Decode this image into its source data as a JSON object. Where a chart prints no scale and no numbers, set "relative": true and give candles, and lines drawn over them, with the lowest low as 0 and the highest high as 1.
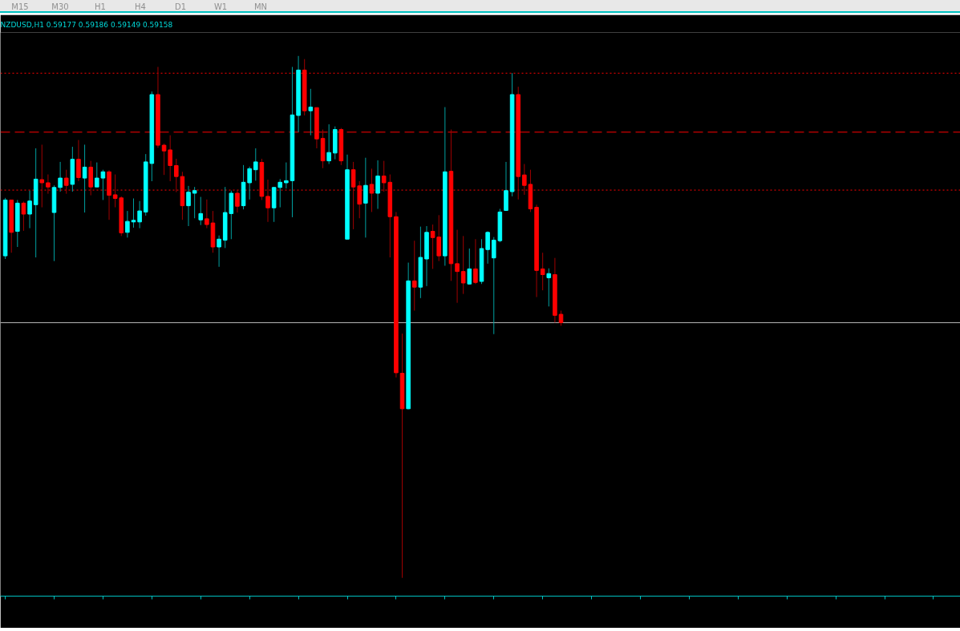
{
  "chart_data": {
    "type": "candlestick",
    "title": "NZDUSD,H1  0.59177 0.59186 0.59149 0.59158",
    "relative": true,
    "annotations": [
      "M15",
      "M30",
      "H1",
      "H4",
      "D1",
      "W1",
      "MN"
    ],
    "categories": [
      null,
      null,
      null,
      null,
      null,
      null,
      null,
      null,
      null,
      null,
      null,
      null,
      null,
      null,
      null,
      null,
      null,
      null,
      null,
      null,
      null,
      null,
      null,
      null,
      null,
      null,
      null,
      null,
      null,
      null,
      null,
      null,
      null,
      null,
      null,
      null,
      null,
      null,
      null,
      null,
      null,
      null,
      null,
      null,
      null,
      null,
      null,
      null,
      null,
      null,
      null,
      null,
      null,
      null,
      null,
      null,
      null,
      null,
      null,
      null,
      null,
      null,
      null,
      null,
      null,
      null,
      null,
      null,
      null,
      null,
      null,
      null,
      null,
      null,
      null,
      null,
      null,
      null,
      null,
      null,
      null,
      null,
      null,
      null,
      null,
      null,
      null,
      null,
      null,
      null,
      null,
      null
    ],
    "ohlc": [
      [
        0.617,
        0.728,
        0.611,
        0.724
      ],
      [
        0.724,
        0.724,
        0.623,
        0.662
      ],
      [
        0.664,
        0.724,
        0.634,
        0.718
      ],
      [
        0.718,
        0.721,
        0.665,
        0.697
      ],
      [
        0.697,
        0.742,
        0.67,
        0.722
      ],
      [
        0.715,
        0.823,
        0.614,
        0.764
      ],
      [
        0.763,
        0.83,
        0.71,
        0.757
      ],
      [
        0.757,
        0.773,
        0.736,
        0.749
      ],
      [
        0.7,
        0.752,
        0.607,
        0.748
      ],
      [
        0.748,
        0.797,
        0.74,
        0.766
      ],
      [
        0.766,
        0.782,
        0.736,
        0.752
      ],
      [
        0.754,
        0.826,
        0.74,
        0.802
      ],
      [
        0.802,
        0.839,
        0.76,
        0.767
      ],
      [
        0.766,
        0.83,
        0.7,
        0.787
      ],
      [
        0.787,
        0.799,
        0.733,
        0.749
      ],
      [
        0.749,
        0.796,
        0.749,
        0.766
      ],
      [
        0.766,
        0.782,
        0.724,
        0.778
      ],
      [
        0.778,
        0.781,
        0.686,
        0.733
      ],
      [
        0.734,
        0.773,
        0.71,
        0.727
      ],
      [
        0.728,
        0.731,
        0.655,
        0.661
      ],
      [
        0.662,
        0.703,
        0.652,
        0.683
      ],
      [
        0.682,
        0.727,
        0.671,
        0.685
      ],
      [
        0.682,
        0.722,
        0.67,
        0.703
      ],
      [
        0.701,
        0.812,
        0.694,
        0.797
      ],
      [
        0.794,
        0.932,
        0.76,
        0.926
      ],
      [
        0.926,
        0.979,
        0.824,
        0.829
      ],
      [
        0.829,
        0.832,
        0.772,
        0.818
      ],
      [
        0.82,
        0.848,
        0.76,
        0.79
      ],
      [
        0.79,
        0.803,
        0.739,
        0.769
      ],
      [
        0.769,
        0.778,
        0.686,
        0.713
      ],
      [
        0.713,
        0.751,
        0.674,
        0.739
      ],
      [
        0.737,
        0.749,
        0.689,
        0.742
      ],
      [
        0.686,
        0.73,
        0.676,
        0.698
      ],
      [
        0.688,
        0.725,
        0.67,
        0.677
      ],
      [
        0.68,
        0.703,
        0.623,
        0.634
      ],
      [
        0.634,
        0.656,
        0.596,
        0.649
      ],
      [
        0.647,
        0.749,
        0.632,
        0.7
      ],
      [
        0.698,
        0.742,
        0.649,
        0.737
      ],
      [
        0.737,
        0.743,
        0.7,
        0.712
      ],
      [
        0.713,
        0.791,
        0.706,
        0.758
      ],
      [
        0.757,
        0.788,
        0.725,
        0.784
      ],
      [
        0.782,
        0.823,
        0.761,
        0.797
      ],
      [
        0.796,
        0.803,
        0.724,
        0.731
      ],
      [
        0.731,
        0.763,
        0.682,
        0.709
      ],
      [
        0.709,
        0.749,
        0.682,
        0.748
      ],
      [
        0.748,
        0.764,
        0.71,
        0.758
      ],
      [
        0.757,
        0.796,
        0.746,
        0.761
      ],
      [
        0.761,
        0.979,
        0.691,
        0.887
      ],
      [
        0.886,
        1.0,
        0.854,
        0.973
      ],
      [
        0.973,
        0.994,
        0.886,
        0.895
      ],
      [
        0.895,
        0.937,
        0.848,
        0.902
      ],
      [
        0.901,
        0.901,
        0.823,
        0.841
      ],
      [
        0.842,
        0.859,
        0.785,
        0.799
      ],
      [
        0.799,
        0.869,
        0.793,
        0.815
      ],
      [
        0.814,
        0.865,
        0.802,
        0.859
      ],
      [
        0.859,
        0.862,
        0.791,
        0.799
      ],
      [
        0.649,
        0.811,
        0.649,
        0.782
      ],
      [
        0.782,
        0.797,
        0.668,
        0.749
      ],
      [
        0.751,
        0.76,
        0.689,
        0.716
      ],
      [
        0.718,
        0.805,
        0.652,
        0.752
      ],
      [
        0.754,
        0.784,
        0.701,
        0.737
      ],
      [
        0.737,
        0.8,
        0.707,
        0.77
      ],
      [
        0.77,
        0.799,
        0.74,
        0.757
      ],
      [
        0.758,
        0.773,
        0.614,
        0.692
      ],
      [
        0.692,
        0.701,
        0.384,
        0.393
      ],
      [
        0.392,
        0.468,
        0.0,
        0.324
      ],
      [
        0.324,
        0.604,
        0.323,
        0.569
      ],
      [
        0.569,
        0.646,
        0.512,
        0.557
      ],
      [
        0.557,
        0.673,
        0.536,
        0.614
      ],
      [
        0.611,
        0.674,
        0.559,
        0.662
      ],
      [
        0.664,
        0.677,
        0.592,
        0.652
      ],
      [
        0.653,
        0.695,
        0.607,
        0.617
      ],
      [
        0.617,
        0.902,
        0.598,
        0.778
      ],
      [
        0.779,
        0.859,
        0.569,
        0.602
      ],
      [
        0.602,
        0.667,
        0.527,
        0.587
      ],
      [
        0.587,
        0.655,
        0.544,
        0.565
      ],
      [
        0.563,
        0.631,
        0.562,
        0.592
      ],
      [
        0.592,
        0.649,
        0.563,
        0.566
      ],
      [
        0.568,
        0.649,
        0.563,
        0.631
      ],
      [
        0.629,
        0.664,
        0.602,
        0.662
      ],
      [
        0.613,
        0.653,
        0.467,
        0.647
      ],
      [
        0.646,
        0.707,
        0.643,
        0.701
      ],
      [
        0.704,
        0.797,
        0.703,
        0.742
      ],
      [
        0.74,
        0.967,
        0.731,
        0.926
      ],
      [
        0.926,
        0.941,
        0.725,
        0.769
      ],
      [
        0.772,
        0.793,
        0.734,
        0.752
      ],
      [
        0.754,
        0.782,
        0.701,
        0.707
      ],
      [
        0.71,
        0.715,
        0.538,
        0.589
      ],
      [
        0.592,
        0.623,
        0.551,
        0.581
      ],
      [
        0.575,
        0.593,
        0.52,
        0.583
      ],
      [
        0.581,
        0.613,
        0.489,
        0.503
      ],
      [
        0.505,
        0.512,
        0.483,
        0.489
      ]
    ],
    "ref_lines": [
      {
        "axis": "y",
        "value": 0.967,
        "color": "#ff0000",
        "line_style": "dotted"
      },
      {
        "axis": "y",
        "value": 0.854,
        "color": "#ff0000",
        "line_style": "dashed"
      },
      {
        "axis": "y",
        "value": 0.743,
        "color": "#ff0000",
        "line_style": "dotted"
      },
      {
        "axis": "y",
        "value": 0.489,
        "color": "#c0c0c0",
        "line_style": "solid"
      }
    ]
  }
}
